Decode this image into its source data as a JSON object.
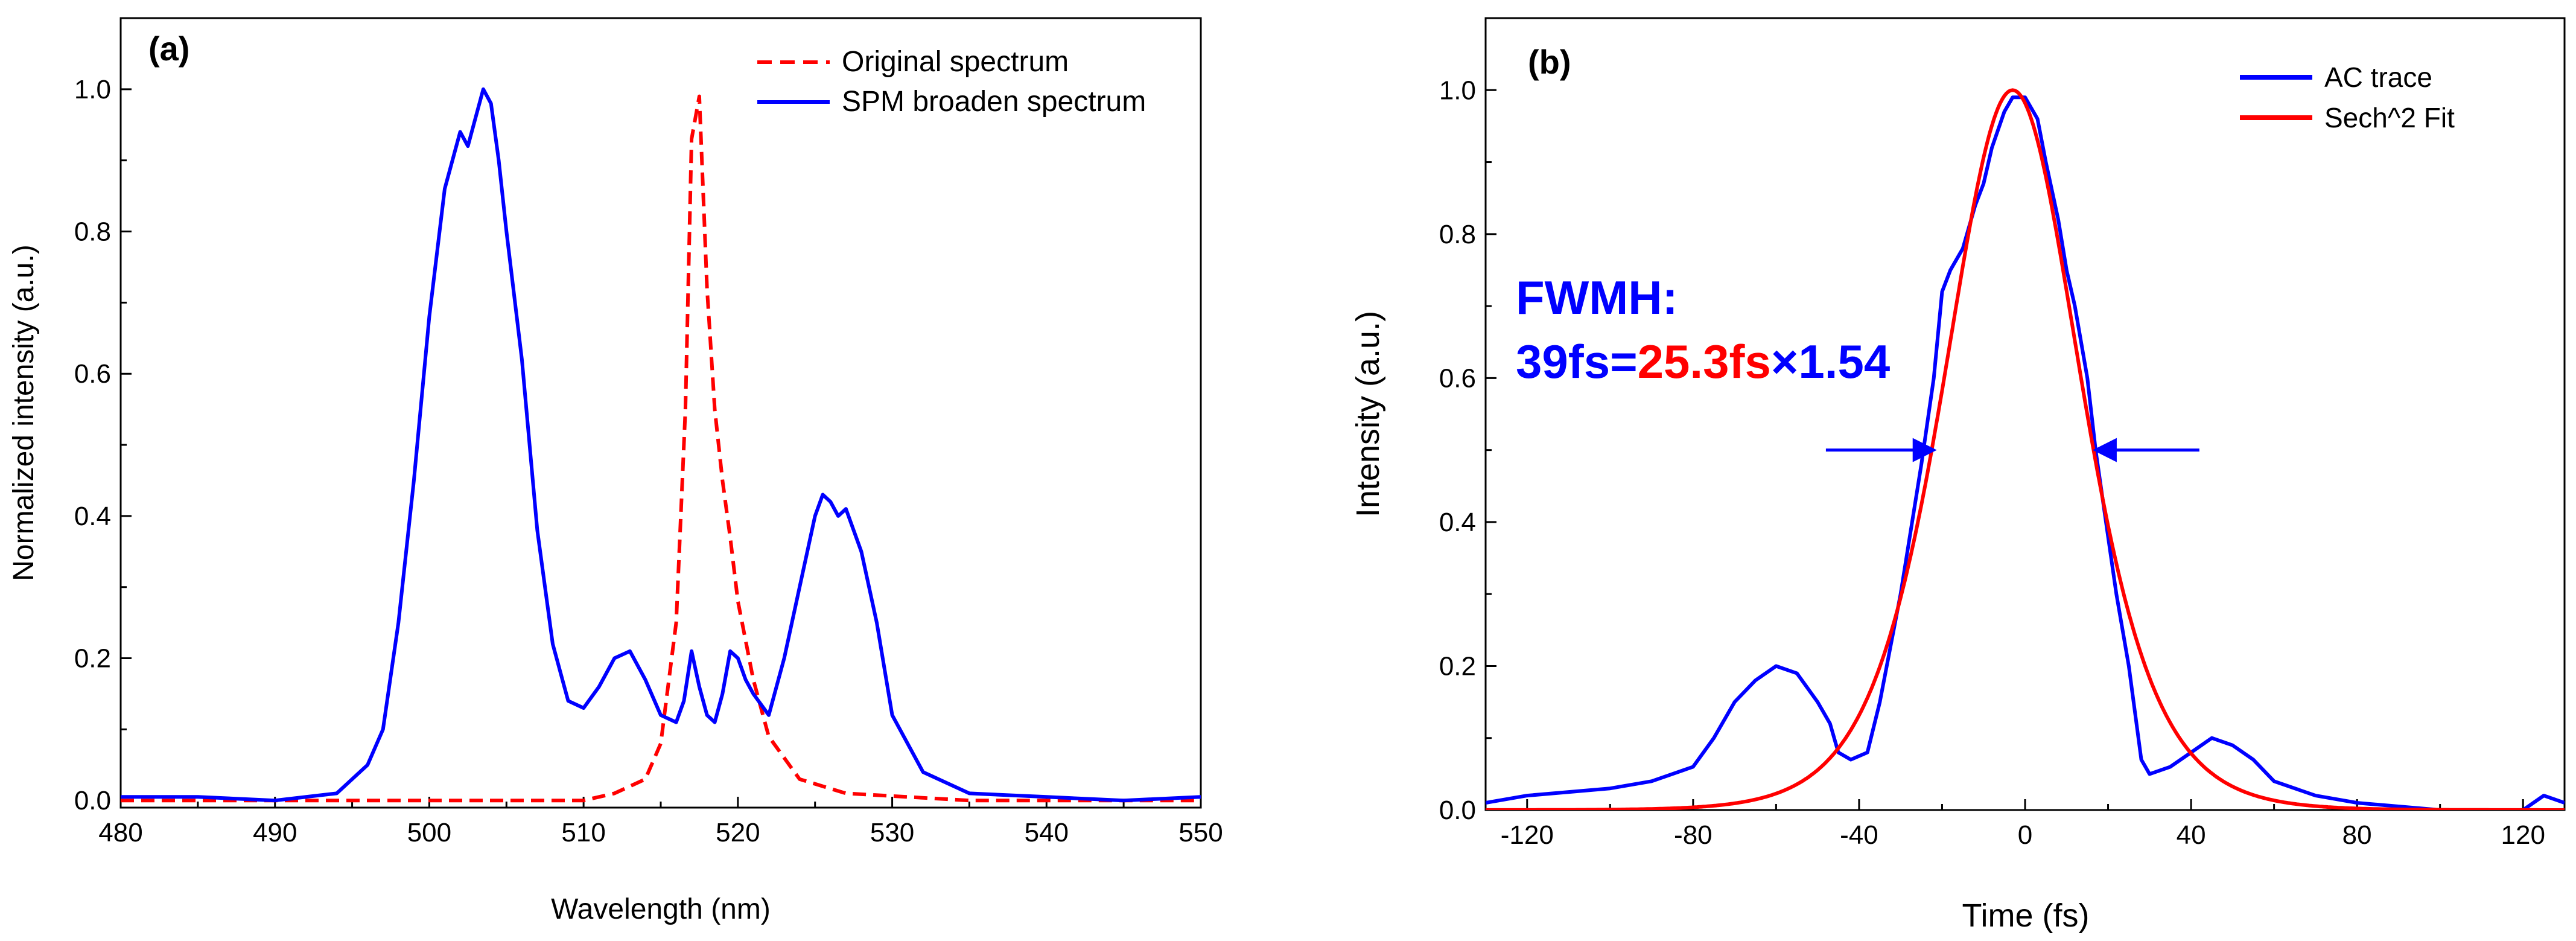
{
  "chart_data": [
    {
      "panel_label": "(a)",
      "type": "line",
      "xlabel": "Wavelength (nm)",
      "ylabel": "Normalized intensity (a.u.)",
      "xlim": [
        480,
        550
      ],
      "ylim": [
        -0.01,
        1.1
      ],
      "xticks": [
        480,
        490,
        500,
        510,
        520,
        530,
        540,
        550
      ],
      "xtick_labels": [
        "480",
        "490",
        "500",
        "510",
        "520",
        "530",
        "540",
        "550"
      ],
      "yticks": [
        0.0,
        0.2,
        0.4,
        0.6,
        0.8,
        1.0
      ],
      "ytick_labels": [
        "0.0",
        "0.2",
        "0.4",
        "0.6",
        "0.8",
        "1.0"
      ],
      "legend_position": "top-right",
      "series": [
        {
          "name": "Original spectrum",
          "style": "dashed",
          "color": "#ff0000",
          "x": [
            480,
            495,
            505,
            510,
            512,
            514,
            515,
            516,
            516.6,
            517,
            517.5,
            518,
            518.5,
            519,
            519.5,
            520,
            521,
            522,
            524,
            527,
            535,
            550
          ],
          "y": [
            0.0,
            0.0,
            0.0,
            0.0,
            0.01,
            0.03,
            0.08,
            0.25,
            0.55,
            0.93,
            0.99,
            0.72,
            0.55,
            0.45,
            0.37,
            0.28,
            0.17,
            0.09,
            0.03,
            0.01,
            0.0,
            0.0
          ]
        },
        {
          "name": "SPM broaden spectrum",
          "style": "solid",
          "color": "#0000ff",
          "x": [
            480,
            485,
            490,
            494,
            496,
            497,
            498,
            499,
            500,
            501,
            502,
            502.5,
            503,
            503.5,
            504,
            504.5,
            505,
            506,
            507,
            508,
            509,
            510,
            511,
            512,
            513,
            514,
            515,
            516,
            516.5,
            517,
            517.5,
            518,
            518.5,
            519,
            519.5,
            520,
            520.5,
            521,
            522,
            523,
            524,
            525,
            525.5,
            526,
            526.5,
            527,
            528,
            529,
            530,
            532,
            535,
            540,
            545,
            550
          ],
          "y": [
            0.005,
            0.005,
            0.0,
            0.01,
            0.05,
            0.1,
            0.25,
            0.45,
            0.68,
            0.86,
            0.94,
            0.92,
            0.96,
            1.0,
            0.98,
            0.9,
            0.8,
            0.62,
            0.38,
            0.22,
            0.14,
            0.13,
            0.16,
            0.2,
            0.21,
            0.17,
            0.12,
            0.11,
            0.14,
            0.21,
            0.16,
            0.12,
            0.11,
            0.15,
            0.21,
            0.2,
            0.17,
            0.15,
            0.12,
            0.2,
            0.3,
            0.4,
            0.43,
            0.42,
            0.4,
            0.41,
            0.35,
            0.25,
            0.12,
            0.04,
            0.01,
            0.005,
            0.0,
            0.005
          ]
        }
      ]
    },
    {
      "panel_label": "(b)",
      "type": "line",
      "xlabel": "Time (fs)",
      "ylabel": "Intensity (a.u.)",
      "xlim": [
        -130,
        130
      ],
      "ylim": [
        0,
        1.1
      ],
      "xticks": [
        -120,
        -80,
        -40,
        0,
        40,
        80,
        120
      ],
      "xtick_labels": [
        "-120",
        "-80",
        "-40",
        "0",
        "40",
        "80",
        "120"
      ],
      "yticks": [
        0.0,
        0.2,
        0.4,
        0.6,
        0.8,
        1.0
      ],
      "ytick_labels": [
        "0.0",
        "0.2",
        "0.4",
        "0.6",
        "0.8",
        "1.0"
      ],
      "legend_position": "top-right",
      "annotation": {
        "line1": "FWMH:",
        "part1": "39fs=",
        "part2": "25.3fs",
        "part3": "×1.54",
        "color_blue": "#0000ff",
        "color_red": "#ff0000"
      },
      "arrows": {
        "y": 0.5,
        "left_from_x": -48,
        "left_to_x": -22,
        "right_from_x": 42,
        "right_to_x": 17
      },
      "series": [
        {
          "name": "AC trace",
          "style": "solid",
          "color": "#0000ff",
          "x": [
            -130,
            -120,
            -100,
            -90,
            -80,
            -75,
            -70,
            -65,
            -60,
            -55,
            -50,
            -47,
            -45,
            -42,
            -38,
            -35,
            -30,
            -25,
            -22,
            -20,
            -18,
            -15,
            -12,
            -10,
            -8,
            -5,
            -3,
            0,
            3,
            5,
            8,
            10,
            12,
            15,
            17,
            20,
            22,
            25,
            28,
            30,
            35,
            40,
            45,
            50,
            55,
            60,
            70,
            80,
            100,
            120,
            125,
            130
          ],
          "y": [
            0.01,
            0.02,
            0.03,
            0.04,
            0.06,
            0.1,
            0.15,
            0.18,
            0.2,
            0.19,
            0.15,
            0.12,
            0.08,
            0.07,
            0.08,
            0.15,
            0.3,
            0.48,
            0.6,
            0.72,
            0.75,
            0.78,
            0.84,
            0.87,
            0.92,
            0.97,
            0.99,
            0.99,
            0.96,
            0.9,
            0.82,
            0.75,
            0.7,
            0.6,
            0.5,
            0.38,
            0.3,
            0.2,
            0.07,
            0.05,
            0.06,
            0.08,
            0.1,
            0.09,
            0.07,
            0.04,
            0.02,
            0.01,
            0.0,
            0.0,
            0.02,
            0.01
          ]
        },
        {
          "name": "Sech^2 Fit",
          "style": "solid",
          "color": "#ff0000",
          "model": "sech2",
          "center": -3,
          "fwhm": 39,
          "amplitude": 1.0
        }
      ]
    }
  ]
}
